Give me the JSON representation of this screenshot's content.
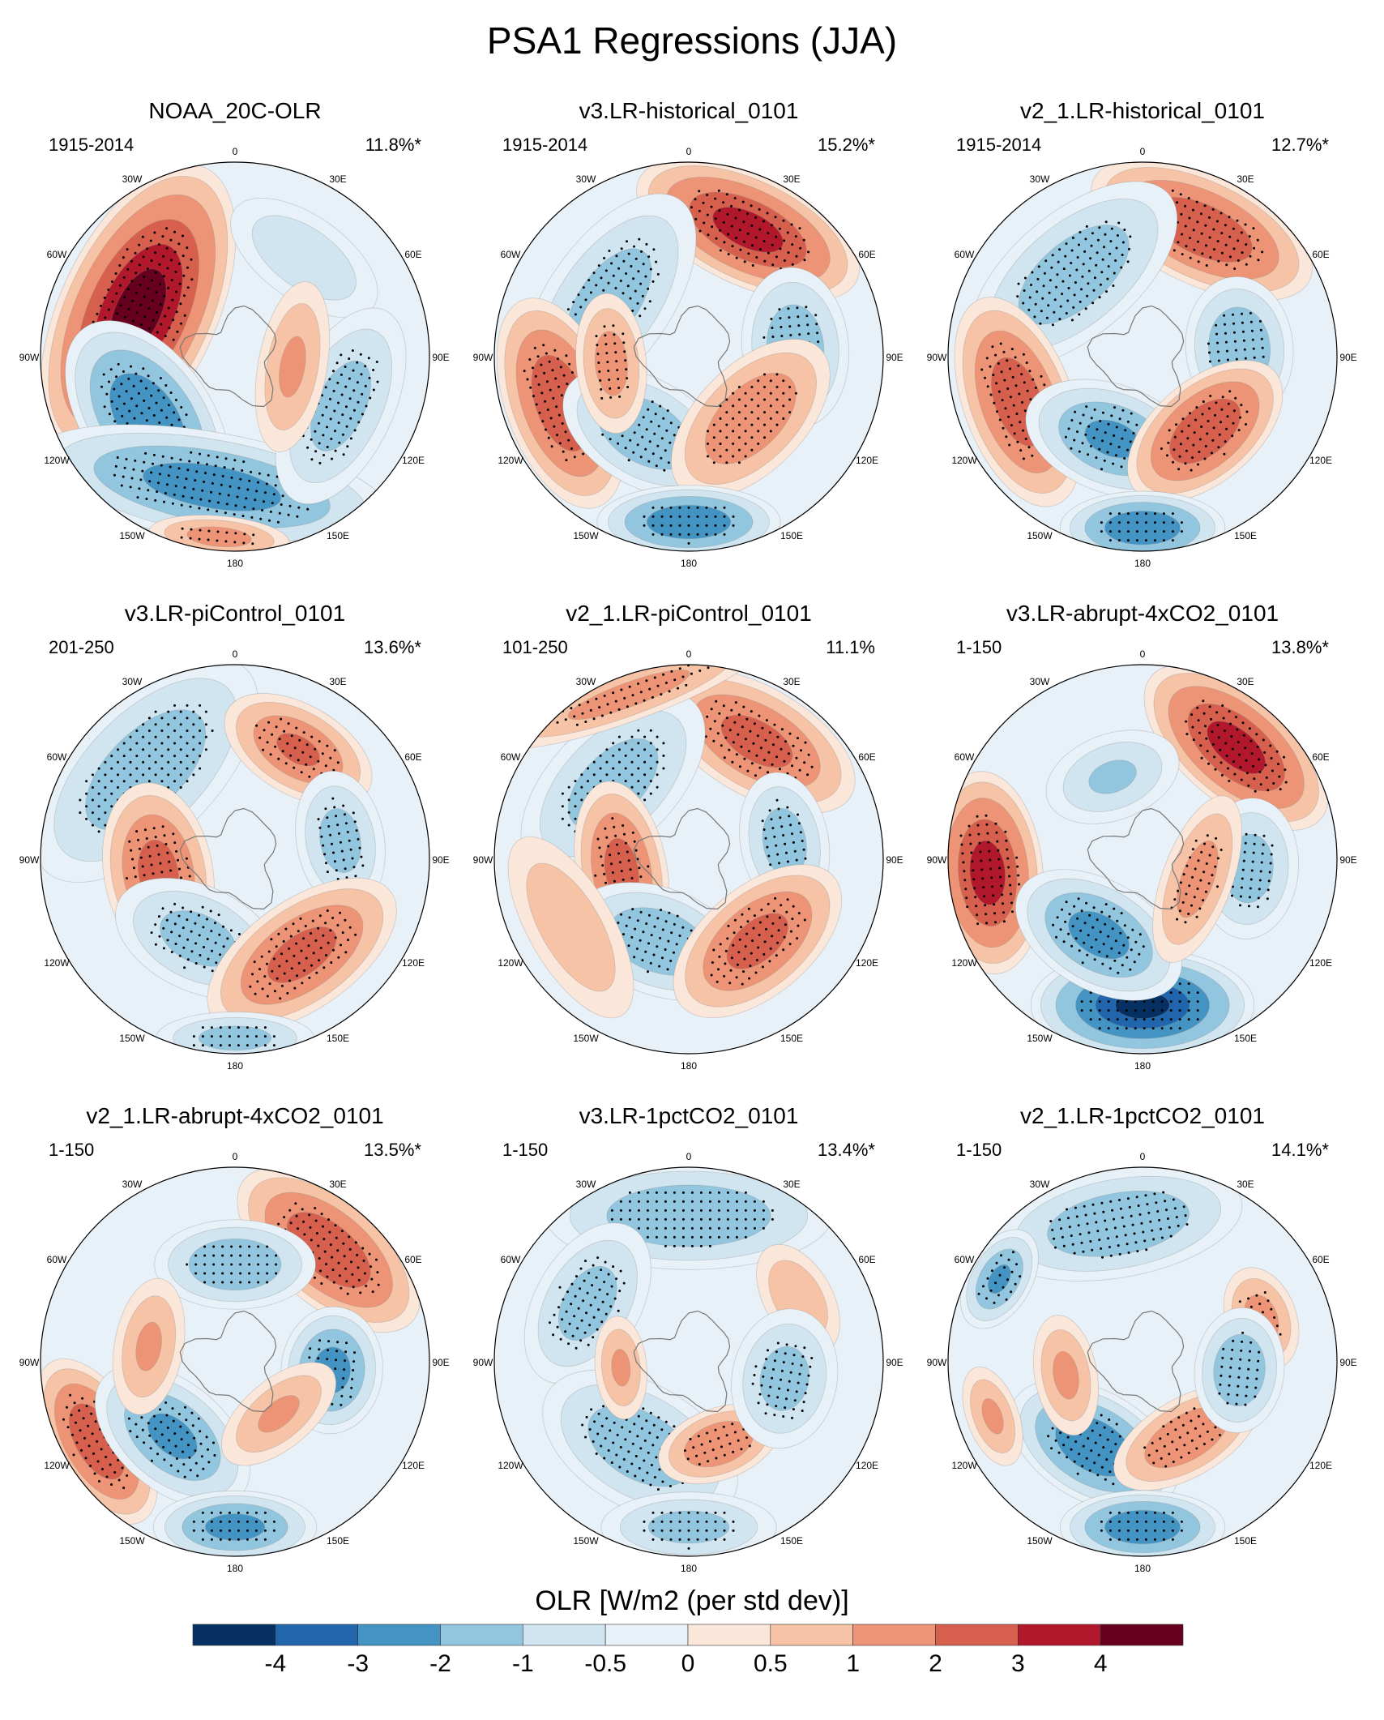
{
  "chart_data": {
    "type": "contour-map-panels",
    "title": "PSA1 Regressions (JJA)",
    "projection": "south-polar-stereographic",
    "longitude_labels": [
      "0",
      "30E",
      "60E",
      "90E",
      "120E",
      "150E",
      "180",
      "150W",
      "120W",
      "90W",
      "60W",
      "30W"
    ],
    "colorbar": {
      "label": "OLR [W/m2 (per std dev)]",
      "ticks": [
        "-4",
        "-3",
        "-2",
        "-1",
        "-0.5",
        "0",
        "0.5",
        "1",
        "2",
        "3",
        "4"
      ],
      "levels": [
        -4,
        -3,
        -2,
        -1,
        -0.5,
        0,
        0.5,
        1,
        2,
        3,
        4
      ],
      "colors": [
        "#053061",
        "#2166ac",
        "#4393c3",
        "#92c5de",
        "#d1e5f0",
        "#e8f1f7",
        "#fbe6da",
        "#f7c3a6",
        "#ed9476",
        "#d6604d",
        "#b2182b",
        "#67001f"
      ]
    },
    "panels": [
      {
        "name": "NOAA_20C-OLR",
        "period": "1915-2014",
        "variance": "11.8%*",
        "blobs": [
          [
            -65,
            0.55,
            4.5,
            0.85,
            0.42
          ],
          [
            -125,
            0.55,
            -3.0,
            0.6,
            0.35
          ],
          [
            -170,
            0.68,
            -2.6,
            1.0,
            0.3
          ],
          [
            35,
            0.62,
            -1.0,
            0.5,
            0.25
          ],
          [
            115,
            0.6,
            -1.5,
            0.6,
            0.3
          ],
          [
            100,
            0.3,
            1.2,
            0.5,
            0.2
          ],
          [
            -175,
            0.93,
            1.5,
            0.4,
            0.12
          ]
        ]
      },
      {
        "name": "v3.LR-historical_0101",
        "period": "1915-2014",
        "variance": "15.2%*",
        "blobs": [
          [
            25,
            0.72,
            3.5,
            0.65,
            0.3
          ],
          [
            -55,
            0.5,
            -1.6,
            0.7,
            0.35
          ],
          [
            85,
            0.55,
            -1.8,
            0.45,
            0.3
          ],
          [
            -110,
            0.7,
            3.0,
            0.6,
            0.3
          ],
          [
            -150,
            0.45,
            -2.0,
            0.5,
            0.3
          ],
          [
            135,
            0.45,
            2.0,
            0.55,
            0.3
          ],
          [
            180,
            0.85,
            -3.0,
            0.5,
            0.2
          ],
          [
            -95,
            0.4,
            1.5,
            0.4,
            0.2
          ]
        ]
      },
      {
        "name": "v2_1.LR-historical_0101",
        "period": "1915-2014",
        "variance": "12.7%*",
        "blobs": [
          [
            25,
            0.72,
            3.0,
            0.65,
            0.3
          ],
          [
            -40,
            0.55,
            -1.8,
            0.7,
            0.35
          ],
          [
            85,
            0.5,
            -2.0,
            0.4,
            0.3
          ],
          [
            -110,
            0.68,
            2.8,
            0.6,
            0.3
          ],
          [
            -160,
            0.45,
            -2.3,
            0.5,
            0.3
          ],
          [
            140,
            0.5,
            3.0,
            0.5,
            0.28
          ],
          [
            180,
            0.88,
            -3.0,
            0.45,
            0.2
          ]
        ]
      },
      {
        "name": "v3.LR-piControl_0101",
        "period": "201-250",
        "variance": "13.6%*",
        "blobs": [
          [
            -45,
            0.65,
            -1.8,
            0.8,
            0.4
          ],
          [
            30,
            0.65,
            2.2,
            0.45,
            0.25
          ],
          [
            80,
            0.55,
            -1.5,
            0.4,
            0.25
          ],
          [
            -100,
            0.4,
            2.5,
            0.5,
            0.3
          ],
          [
            -155,
            0.45,
            -1.5,
            0.5,
            0.3
          ],
          [
            145,
            0.6,
            2.5,
            0.6,
            0.3
          ],
          [
            180,
            0.92,
            -1.5,
            0.45,
            0.15
          ]
        ]
      },
      {
        "name": "v2_1.LR-piControl_0101",
        "period": "101-250",
        "variance": "11.1%",
        "blobs": [
          [
            30,
            0.7,
            2.5,
            0.6,
            0.3
          ],
          [
            -45,
            0.55,
            -1.6,
            0.65,
            0.35
          ],
          [
            80,
            0.5,
            -1.6,
            0.4,
            0.25
          ],
          [
            -100,
            0.35,
            2.5,
            0.5,
            0.25
          ],
          [
            -160,
            0.45,
            -2.0,
            0.5,
            0.3
          ],
          [
            140,
            0.55,
            2.5,
            0.55,
            0.3
          ],
          [
            -20,
            0.9,
            1.5,
            0.8,
            0.15
          ],
          [
            -120,
            0.7,
            1.0,
            0.6,
            0.25
          ]
        ]
      },
      {
        "name": "v3.LR-abrupt-4xCO2_0101",
        "period": "1-150",
        "variance": "13.8%*",
        "blobs": [
          [
            -95,
            0.8,
            3.5,
            0.55,
            0.3
          ],
          [
            40,
            0.75,
            3.5,
            0.6,
            0.3
          ],
          [
            180,
            0.75,
            -4.2,
            0.6,
            0.3
          ],
          [
            -150,
            0.45,
            -2.5,
            0.5,
            0.3
          ],
          [
            95,
            0.55,
            -1.6,
            0.4,
            0.28
          ],
          [
            -20,
            0.45,
            -1.2,
            0.4,
            0.25
          ],
          [
            110,
            0.3,
            1.5,
            0.5,
            0.2
          ]
        ]
      },
      {
        "name": "v2_1.LR-abrupt-4xCO2_0101",
        "period": "1-150",
        "variance": "13.5%*",
        "blobs": [
          [
            40,
            0.75,
            3.0,
            0.6,
            0.3
          ],
          [
            -120,
            0.82,
            3.0,
            0.5,
            0.25
          ],
          [
            -140,
            0.5,
            -2.3,
            0.5,
            0.3
          ],
          [
            95,
            0.5,
            -2.5,
            0.35,
            0.28
          ],
          [
            180,
            0.85,
            -2.5,
            0.45,
            0.2
          ],
          [
            0,
            0.5,
            -2.0,
            0.45,
            0.25
          ],
          [
            -80,
            0.45,
            1.2,
            0.4,
            0.2
          ],
          [
            140,
            0.35,
            1.2,
            0.4,
            0.2
          ]
        ]
      },
      {
        "name": "v3.LR-1pctCO2_0101",
        "period": "1-150",
        "variance": "13.4%*",
        "blobs": [
          [
            0,
            0.75,
            -2.0,
            0.8,
            0.3
          ],
          [
            -60,
            0.6,
            -1.5,
            0.5,
            0.3
          ],
          [
            -150,
            0.5,
            -1.8,
            0.6,
            0.35
          ],
          [
            160,
            0.45,
            2.0,
            0.35,
            0.2
          ],
          [
            60,
            0.65,
            1.0,
            0.35,
            0.2
          ],
          [
            100,
            0.5,
            -1.5,
            0.4,
            0.3
          ],
          [
            180,
            0.85,
            -1.5,
            0.5,
            0.2
          ],
          [
            -95,
            0.35,
            1.2,
            0.3,
            0.15
          ]
        ]
      },
      {
        "name": "v2_1.LR-1pctCO2_0101",
        "period": "1-150",
        "variance": "14.1%*",
        "blobs": [
          [
            -10,
            0.72,
            -2.0,
            0.7,
            0.3
          ],
          [
            -60,
            0.85,
            -2.2,
            0.3,
            0.18
          ],
          [
            -150,
            0.5,
            -3.0,
            0.5,
            0.3
          ],
          [
            150,
            0.45,
            2.0,
            0.45,
            0.22
          ],
          [
            70,
            0.65,
            1.5,
            0.3,
            0.2
          ],
          [
            95,
            0.5,
            -2.0,
            0.35,
            0.25
          ],
          [
            180,
            0.85,
            -3.0,
            0.45,
            0.2
          ],
          [
            -100,
            0.4,
            1.3,
            0.35,
            0.18
          ],
          [
            -110,
            0.82,
            1.2,
            0.3,
            0.15
          ]
        ]
      }
    ]
  }
}
